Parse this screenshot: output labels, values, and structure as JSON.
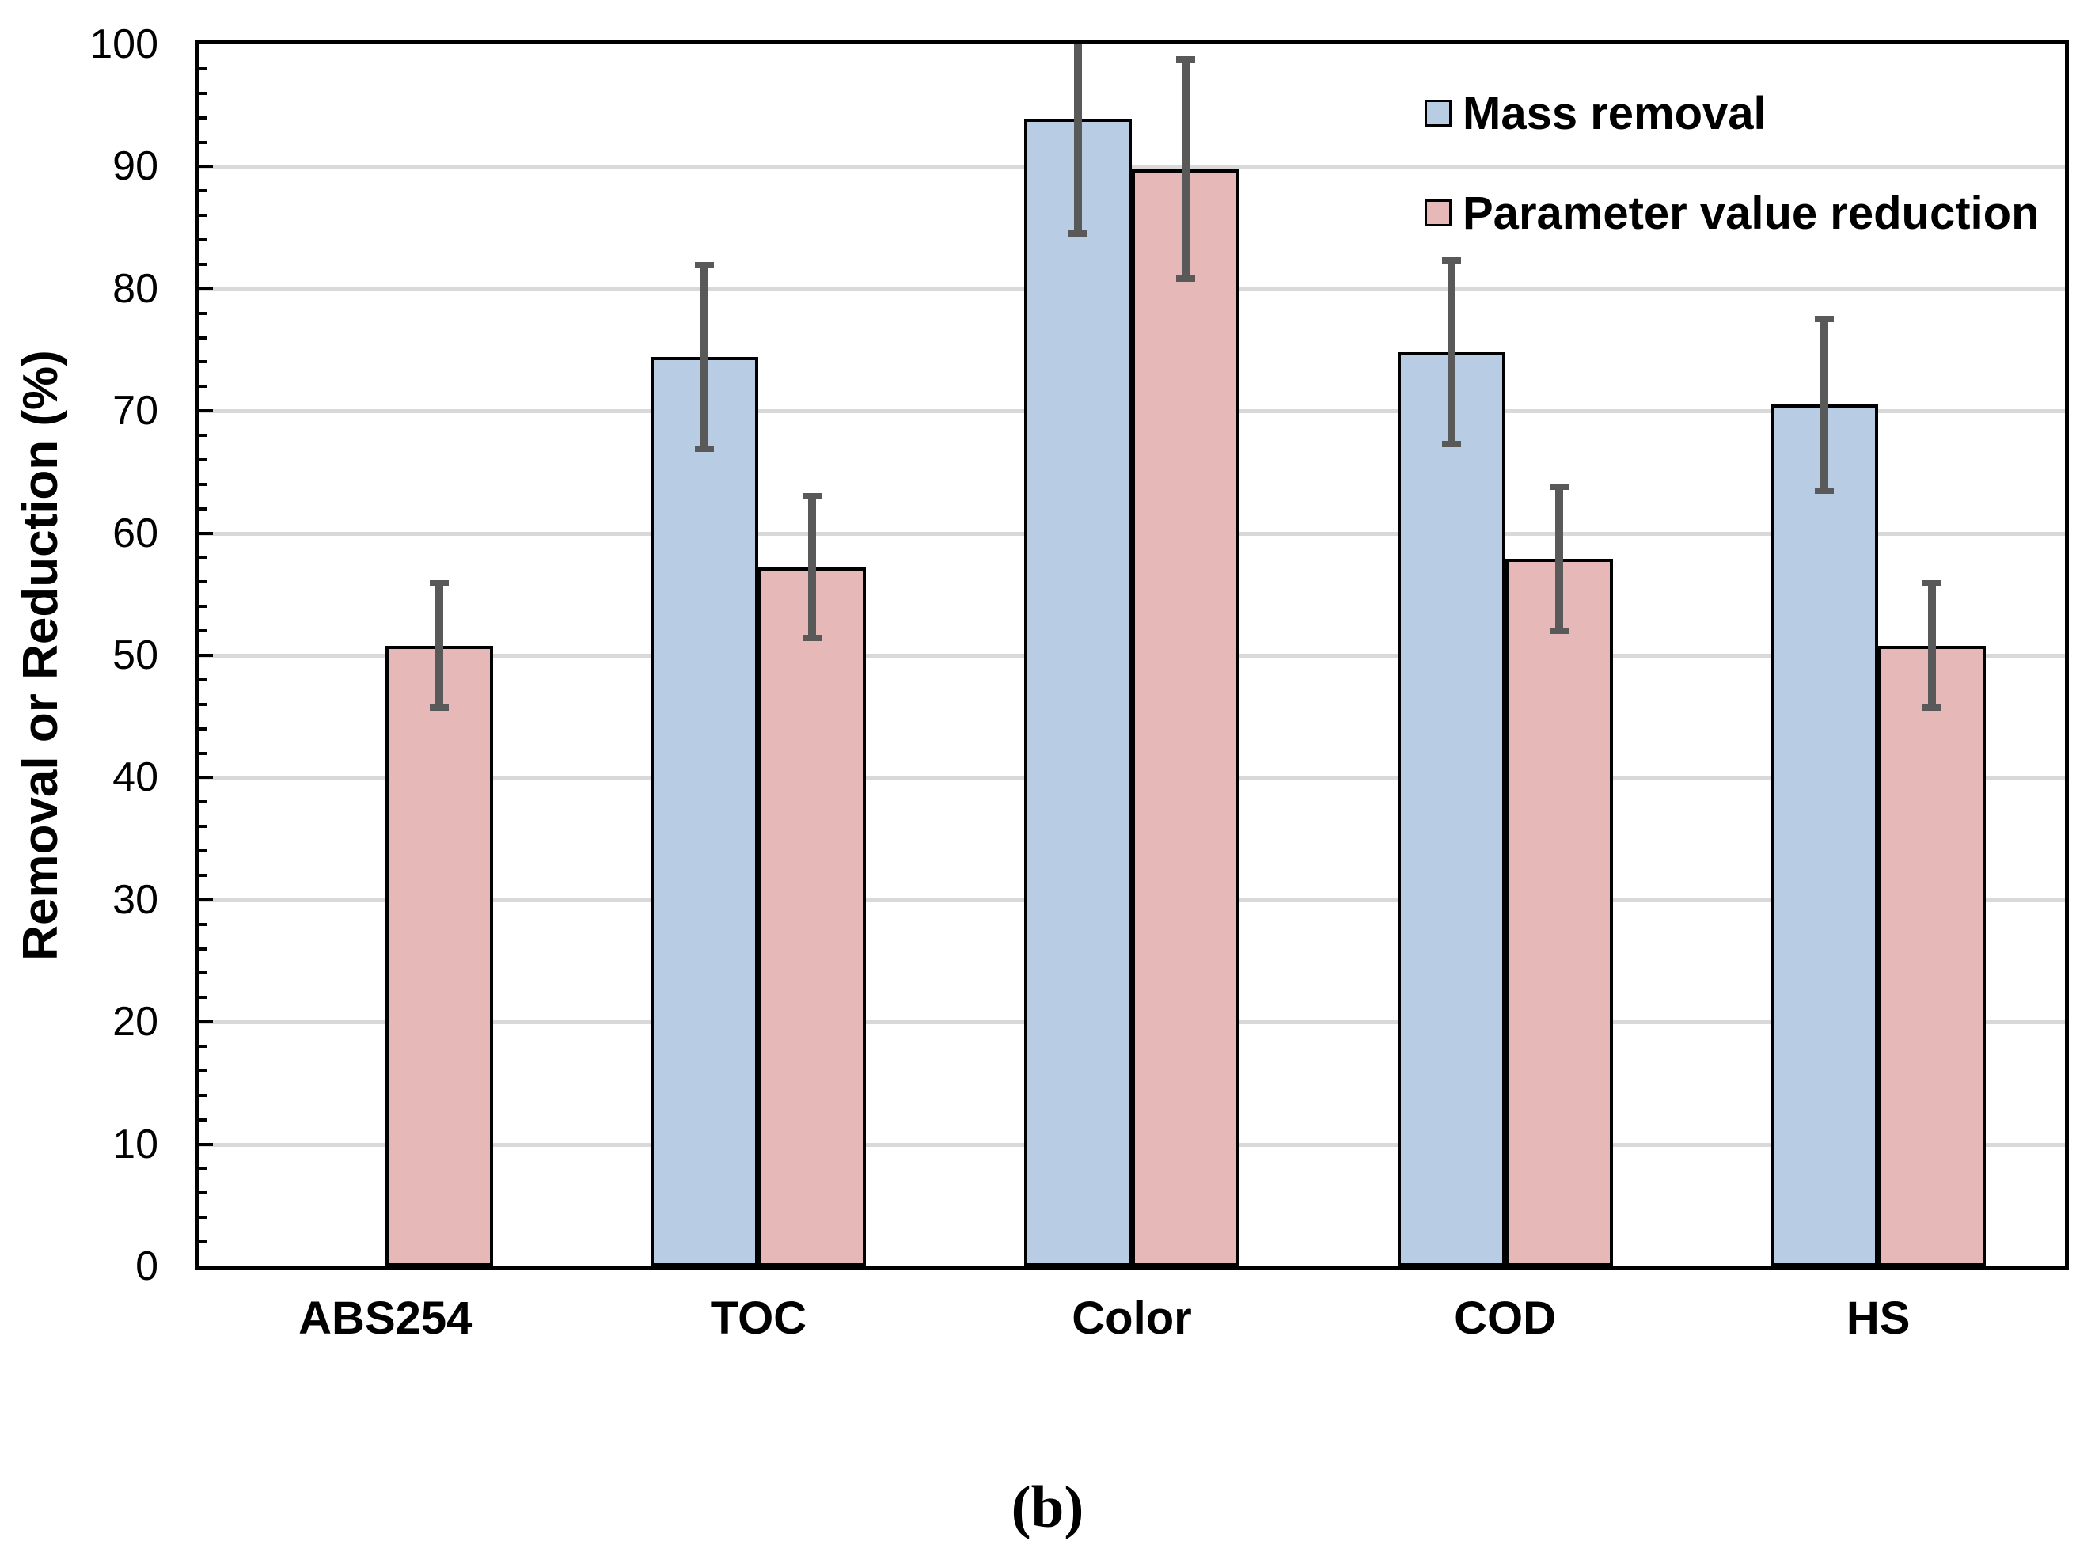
{
  "figure": {
    "caption": "(b)"
  },
  "chart_data": {
    "type": "bar",
    "title": "",
    "xlabel": "",
    "ylabel": "Removal or Reduction (%)",
    "categories": [
      "ABS254",
      "TOC",
      "Color",
      "COD",
      "HS"
    ],
    "series": [
      {
        "name": "Mass removal",
        "color": "#B8CCE4",
        "values": [
          null,
          74.4,
          93.9,
          74.8,
          70.5
        ],
        "errors": [
          null,
          7.5,
          9.4,
          7.5,
          7.0
        ]
      },
      {
        "name": "Parameter value reduction",
        "color": "#E6B9B8",
        "values": [
          50.8,
          57.2,
          89.8,
          57.9,
          50.8
        ],
        "errors": [
          5.1,
          5.8,
          9.0,
          5.9,
          5.1
        ]
      }
    ],
    "ylim": [
      0,
      100
    ],
    "y_major_tick_step": 10,
    "y_minor_tick_step": 2,
    "y_tick_labels": [
      "0",
      "10",
      "20",
      "30",
      "40",
      "50",
      "60",
      "70",
      "80",
      "90",
      "100"
    ],
    "grid": "horizontal-major-only",
    "legend_position": "top-right-inside",
    "bar_outline_color": "#000000",
    "error_bar_color": "#595959",
    "gridline_color": "#D9D9D9",
    "axis_color": "#000000",
    "background_color": "#FFFFFF"
  }
}
